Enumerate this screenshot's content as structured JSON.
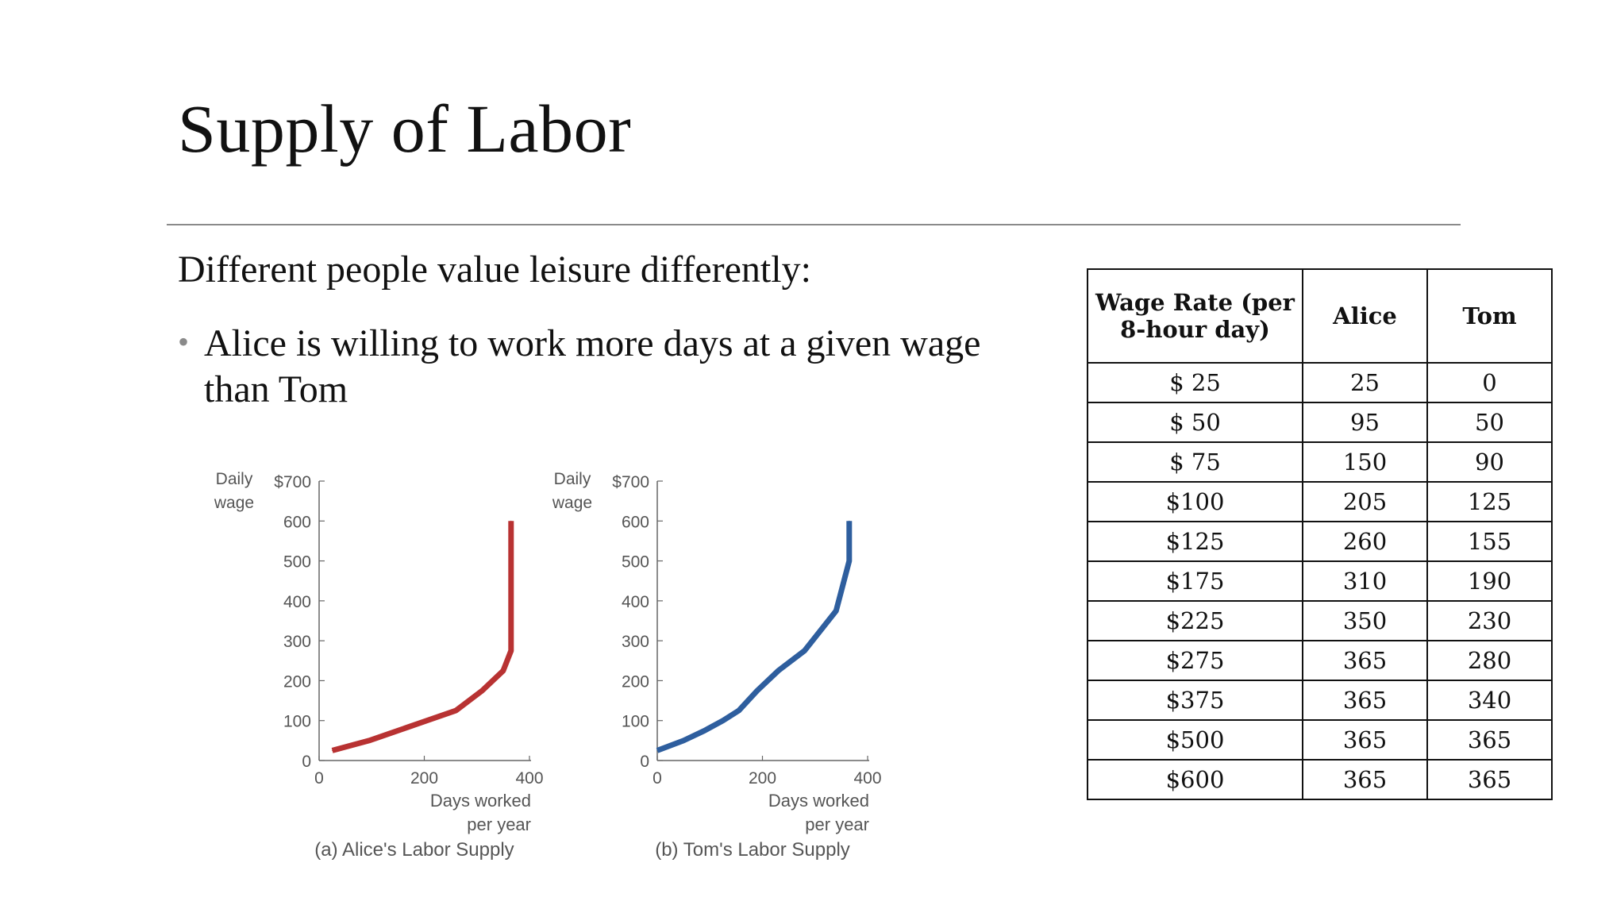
{
  "slide": {
    "title": "Supply of Labor",
    "intro": "Different people value leisure differently:",
    "bullet_marker": "•",
    "bullet": "Alice is willing to work more days at a given wage than Tom"
  },
  "chart_data": [
    {
      "type": "line",
      "ylabel": "Daily wage",
      "xlabel": "Days worked per year",
      "caption": "(a) Alice's Labor Supply",
      "x_ticks": [
        "0",
        "200",
        "400"
      ],
      "y_ticks": [
        "0",
        "100",
        "200",
        "300",
        "400",
        "500",
        "600",
        "$700"
      ],
      "xlim": [
        0,
        400
      ],
      "ylim": [
        0,
        700
      ],
      "color": "#b83232",
      "series": [
        {
          "points": [
            [
              25,
              25
            ],
            [
              95,
              50
            ],
            [
              150,
              75
            ],
            [
              205,
              100
            ],
            [
              260,
              125
            ],
            [
              310,
              175
            ],
            [
              350,
              225
            ],
            [
              365,
              275
            ],
            [
              365,
              375
            ],
            [
              365,
              500
            ],
            [
              365,
              600
            ]
          ]
        }
      ]
    },
    {
      "type": "line",
      "ylabel": "Daily wage",
      "xlabel": "Days worked per year",
      "caption": "(b) Tom's Labor Supply",
      "x_ticks": [
        "0",
        "200",
        "400"
      ],
      "y_ticks": [
        "0",
        "100",
        "200",
        "300",
        "400",
        "500",
        "600",
        "$700"
      ],
      "xlim": [
        0,
        400
      ],
      "ylim": [
        0,
        700
      ],
      "color": "#2e5e9e",
      "series": [
        {
          "points": [
            [
              0,
              25
            ],
            [
              50,
              50
            ],
            [
              90,
              75
            ],
            [
              125,
              100
            ],
            [
              155,
              125
            ],
            [
              190,
              175
            ],
            [
              230,
              225
            ],
            [
              280,
              275
            ],
            [
              340,
              375
            ],
            [
              365,
              500
            ],
            [
              365,
              600
            ]
          ]
        }
      ]
    }
  ],
  "table": {
    "headers": [
      "Wage Rate (per 8-hour day)",
      "Alice",
      "Tom"
    ],
    "rows": [
      [
        "$ 25",
        "25",
        "0"
      ],
      [
        "$ 50",
        "95",
        "50"
      ],
      [
        "$ 75",
        "150",
        "90"
      ],
      [
        "$100",
        "205",
        "125"
      ],
      [
        "$125",
        "260",
        "155"
      ],
      [
        "$175",
        "310",
        "190"
      ],
      [
        "$225",
        "350",
        "230"
      ],
      [
        "$275",
        "365",
        "280"
      ],
      [
        "$375",
        "365",
        "340"
      ],
      [
        "$500",
        "365",
        "365"
      ],
      [
        "$600",
        "365",
        "365"
      ]
    ]
  }
}
